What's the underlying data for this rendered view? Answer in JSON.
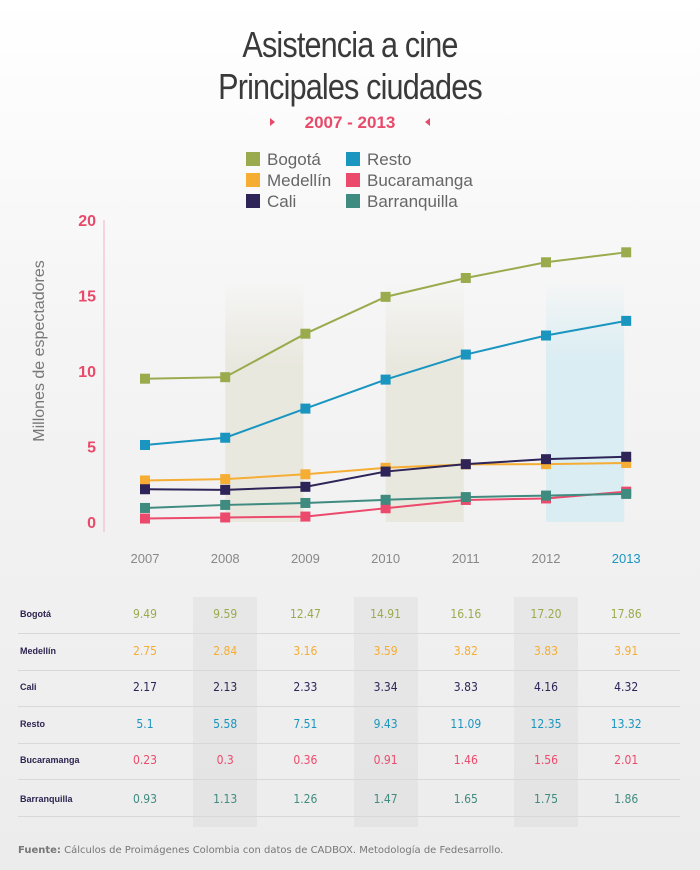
{
  "header": {
    "title_line1": "Asistencia a cine",
    "title_line2": "Principales ciudades",
    "subtitle": "2007 - 2013"
  },
  "colors": {
    "Bogotá": "#9aab4e",
    "Medellín": "#f5ad33",
    "Cali": "#2e2458",
    "Resto": "#1a95c0",
    "Bucaramanga": "#ec4a6c",
    "Barranquilla": "#3f8b80",
    "axis": "#e84a6a",
    "highlight_year": "#1a95c0"
  },
  "chart_data": {
    "type": "line",
    "title": "Asistencia a cine Principales ciudades",
    "subtitle": "2007 - 2013",
    "ylabel": "Millones de espectadores",
    "xlabel": "",
    "x": [
      "2007",
      "2008",
      "2009",
      "2010",
      "2011",
      "2012",
      "2013"
    ],
    "ylim": [
      0,
      20
    ],
    "yticks": [
      "0",
      "5",
      "10",
      "15",
      "20"
    ],
    "legend_position": "top-center",
    "series": [
      {
        "name": "Bogotá",
        "values": [
          9.49,
          9.59,
          12.47,
          14.91,
          16.16,
          17.2,
          17.86
        ],
        "labels": [
          "9.49",
          "9.59",
          "12.47",
          "14.91",
          "16.16",
          "17.20",
          "17.86"
        ]
      },
      {
        "name": "Medellín",
        "values": [
          2.75,
          2.84,
          3.16,
          3.59,
          3.82,
          3.83,
          3.91
        ],
        "labels": [
          "2.75",
          "2.84",
          "3.16",
          "3.59",
          "3.82",
          "3.83",
          "3.91"
        ]
      },
      {
        "name": "Cali",
        "values": [
          2.17,
          2.13,
          2.33,
          3.34,
          3.83,
          4.16,
          4.32
        ],
        "labels": [
          "2.17",
          "2.13",
          "2.33",
          "3.34",
          "3.83",
          "4.16",
          "4.32"
        ]
      },
      {
        "name": "Resto",
        "values": [
          5.1,
          5.58,
          7.51,
          9.43,
          11.09,
          12.35,
          13.32
        ],
        "labels": [
          "5.1",
          "5.58",
          "7.51",
          "9.43",
          "11.09",
          "12.35",
          "13.32"
        ]
      },
      {
        "name": "Bucaramanga",
        "values": [
          0.23,
          0.3,
          0.36,
          0.91,
          1.46,
          1.56,
          2.01
        ],
        "labels": [
          "0.23",
          "0.3",
          "0.36",
          "0.91",
          "1.46",
          "1.56",
          "2.01"
        ]
      },
      {
        "name": "Barranquilla",
        "values": [
          0.93,
          1.13,
          1.26,
          1.47,
          1.65,
          1.75,
          1.86
        ],
        "labels": [
          "0.93",
          "1.13",
          "1.26",
          "1.47",
          "1.65",
          "1.75",
          "1.86"
        ]
      }
    ],
    "legend": [
      {
        "name": "Bogotá"
      },
      {
        "name": "Medellín"
      },
      {
        "name": "Cali"
      },
      {
        "name": "Resto"
      },
      {
        "name": "Bucaramanga"
      },
      {
        "name": "Barranquilla"
      }
    ]
  },
  "footer": {
    "label": "Fuente:",
    "text": "Cálculos de Proimágenes Colombia con datos de CADBOX. Metodología de Fedesarrollo."
  }
}
